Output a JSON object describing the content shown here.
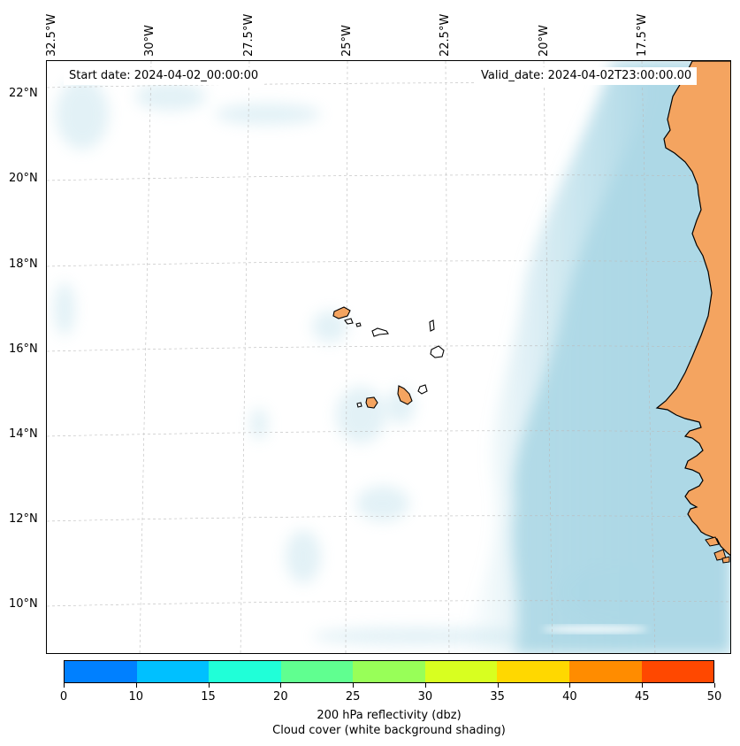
{
  "map": {
    "start_date": "Start date: 2024-04-02_00:00:00",
    "valid_date": "Valid_date: 2024-04-02T23:00:00.00",
    "lon_labels": [
      "32.5°W",
      "30°W",
      "27.5°W",
      "25°W",
      "22.5°W",
      "20°W",
      "17.5°W"
    ],
    "lat_labels": [
      "22°N",
      "20°N",
      "18°N",
      "16°N",
      "14°N",
      "12°N",
      "10°N"
    ],
    "land_color": "#f4a460",
    "cloud_color": "#add8e6",
    "gridlines": true
  },
  "colorbar": {
    "ticks": [
      "0",
      "10",
      "15",
      "20",
      "25",
      "30",
      "35",
      "40",
      "45",
      "50"
    ],
    "colors": [
      "#0080ff",
      "#00c0ff",
      "#20ffd8",
      "#60ff90",
      "#98ff58",
      "#d8ff20",
      "#ffd800",
      "#ff8c00",
      "#ff4800"
    ],
    "label": "200 hPa reflectivity (dbz)",
    "sublabel": "Cloud cover (white background shading)"
  }
}
